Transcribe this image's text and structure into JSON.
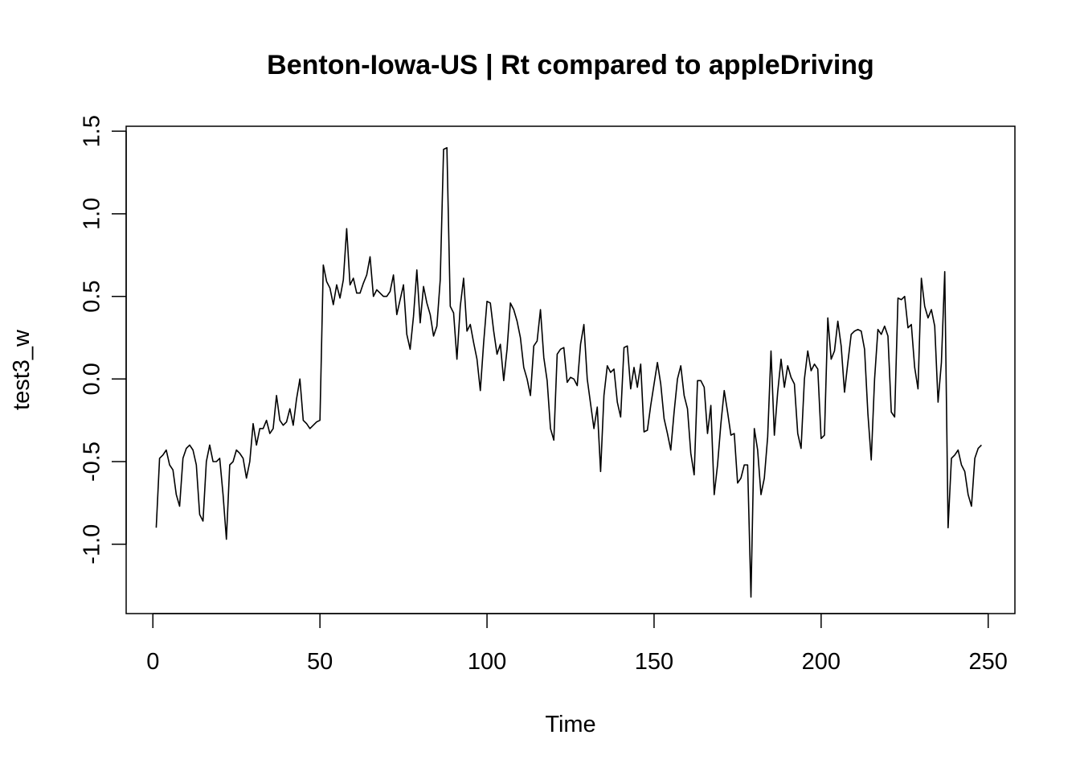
{
  "chart_data": {
    "type": "line",
    "title": "Benton-Iowa-US | Rt compared to appleDriving",
    "xlabel": "Time",
    "ylabel": "test3_w",
    "xlim": [
      -8,
      258
    ],
    "ylim": [
      -1.42,
      1.53
    ],
    "xticks": [
      0,
      50,
      100,
      150,
      200,
      250
    ],
    "yticks": [
      -1.0,
      -0.5,
      0.0,
      0.5,
      1.0,
      1.5
    ],
    "xtick_labels": [
      "0",
      "50",
      "100",
      "150",
      "200",
      "250"
    ],
    "ytick_labels": [
      "-1.0",
      "-0.5",
      "0.0",
      "0.5",
      "1.0",
      "1.5"
    ],
    "grid": false,
    "line_color": "#000000",
    "series": [
      {
        "x": [
          1,
          2,
          3,
          4,
          5,
          6,
          7,
          8,
          9,
          10,
          11,
          12,
          13,
          14,
          15,
          16,
          17,
          18,
          19,
          20,
          21,
          22,
          23,
          24,
          25,
          26,
          27,
          28,
          29,
          30,
          31,
          32,
          33,
          34,
          35,
          36,
          37,
          38,
          39,
          40,
          41,
          42,
          43,
          44,
          45,
          46,
          47,
          48,
          49,
          50,
          51,
          52,
          53,
          54,
          55,
          56,
          57,
          58,
          59,
          60,
          61,
          62,
          63,
          64,
          65,
          66,
          67,
          68,
          69,
          70,
          71,
          72,
          73,
          74,
          75,
          76,
          77,
          78,
          79,
          80,
          81,
          82,
          83,
          84,
          85,
          86,
          87,
          88,
          89,
          90,
          91,
          92,
          93,
          94,
          95,
          96,
          97,
          98,
          99,
          100,
          101,
          102,
          103,
          104,
          105,
          106,
          107,
          108,
          109,
          110,
          111,
          112,
          113,
          114,
          115,
          116,
          117,
          118,
          119,
          120,
          121,
          122,
          123,
          124,
          125,
          126,
          127,
          128,
          129,
          130,
          131,
          132,
          133,
          134,
          135,
          136,
          137,
          138,
          139,
          140,
          141,
          142,
          143,
          144,
          145,
          146,
          147,
          148,
          149,
          150,
          151,
          152,
          153,
          154,
          155,
          156,
          157,
          158,
          159,
          160,
          161,
          162,
          163,
          164,
          165,
          166,
          167,
          168,
          169,
          170,
          171,
          172,
          173,
          174,
          175,
          176,
          177,
          178,
          179,
          180,
          181,
          182,
          183,
          184,
          185,
          186,
          187,
          188,
          189,
          190,
          191,
          192,
          193,
          194,
          195,
          196,
          197,
          198,
          199,
          200,
          201,
          202,
          203,
          204,
          205,
          206,
          207,
          208,
          209,
          210,
          211,
          212,
          213,
          214,
          215,
          216,
          217,
          218,
          219,
          220,
          221,
          222,
          223,
          224,
          225,
          226,
          227,
          228,
          229,
          230,
          231,
          232,
          233,
          234,
          235,
          236,
          237,
          238,
          239,
          240,
          241,
          242,
          243,
          244,
          245,
          246,
          247,
          248
        ],
        "y": [
          -0.9,
          -0.48,
          -0.46,
          -0.43,
          -0.52,
          -0.55,
          -0.7,
          -0.77,
          -0.48,
          -0.42,
          -0.4,
          -0.43,
          -0.52,
          -0.82,
          -0.86,
          -0.5,
          -0.4,
          -0.5,
          -0.5,
          -0.48,
          -0.7,
          -0.97,
          -0.52,
          -0.5,
          -0.43,
          -0.45,
          -0.48,
          -0.6,
          -0.5,
          -0.27,
          -0.4,
          -0.3,
          -0.3,
          -0.25,
          -0.33,
          -0.3,
          -0.1,
          -0.25,
          -0.28,
          -0.26,
          -0.18,
          -0.28,
          -0.12,
          0.0,
          -0.25,
          -0.27,
          -0.3,
          -0.28,
          -0.26,
          -0.25,
          0.69,
          0.59,
          0.55,
          0.45,
          0.57,
          0.49,
          0.6,
          0.91,
          0.57,
          0.61,
          0.52,
          0.52,
          0.58,
          0.63,
          0.74,
          0.5,
          0.54,
          0.52,
          0.5,
          0.5,
          0.53,
          0.63,
          0.39,
          0.48,
          0.57,
          0.27,
          0.18,
          0.38,
          0.66,
          0.34,
          0.56,
          0.46,
          0.39,
          0.26,
          0.32,
          0.6,
          1.39,
          1.4,
          0.44,
          0.4,
          0.12,
          0.44,
          0.61,
          0.29,
          0.33,
          0.22,
          0.12,
          -0.07,
          0.22,
          0.47,
          0.46,
          0.29,
          0.15,
          0.21,
          -0.01,
          0.18,
          0.46,
          0.42,
          0.35,
          0.25,
          0.07,
          0.0,
          -0.1,
          0.2,
          0.23,
          0.42,
          0.13,
          -0.01,
          -0.3,
          -0.37,
          0.15,
          0.18,
          0.19,
          -0.02,
          0.01,
          0.0,
          -0.04,
          0.21,
          0.33,
          0.0,
          -0.15,
          -0.3,
          -0.17,
          -0.56,
          -0.1,
          0.08,
          0.04,
          0.06,
          -0.14,
          -0.23,
          0.19,
          0.2,
          -0.06,
          0.07,
          -0.05,
          0.09,
          -0.32,
          -0.31,
          -0.16,
          -0.03,
          0.1,
          -0.03,
          -0.24,
          -0.33,
          -0.43,
          -0.2,
          0.0,
          0.08,
          -0.1,
          -0.18,
          -0.45,
          -0.58,
          -0.01,
          -0.01,
          -0.05,
          -0.33,
          -0.16,
          -0.7,
          -0.52,
          -0.27,
          -0.07,
          -0.2,
          -0.34,
          -0.33,
          -0.63,
          -0.6,
          -0.52,
          -0.52,
          -1.32,
          -0.3,
          -0.43,
          -0.7,
          -0.6,
          -0.35,
          0.17,
          -0.34,
          -0.08,
          0.12,
          -0.05,
          0.08,
          0.01,
          -0.03,
          -0.33,
          -0.42,
          0.0,
          0.17,
          0.05,
          0.09,
          0.06,
          -0.36,
          -0.34,
          0.37,
          0.12,
          0.17,
          0.35,
          0.2,
          -0.08,
          0.1,
          0.27,
          0.29,
          0.3,
          0.29,
          0.18,
          -0.21,
          -0.49,
          0.0,
          0.3,
          0.27,
          0.32,
          0.26,
          -0.2,
          -0.23,
          0.49,
          0.48,
          0.5,
          0.31,
          0.33,
          0.07,
          -0.06,
          0.61,
          0.44,
          0.37,
          0.42,
          0.32,
          -0.14,
          0.1,
          0.65,
          -0.9,
          -0.48,
          -0.46,
          -0.43,
          -0.52,
          -0.56,
          -0.7,
          -0.77,
          -0.48,
          -0.42,
          -0.4
        ]
      }
    ]
  }
}
